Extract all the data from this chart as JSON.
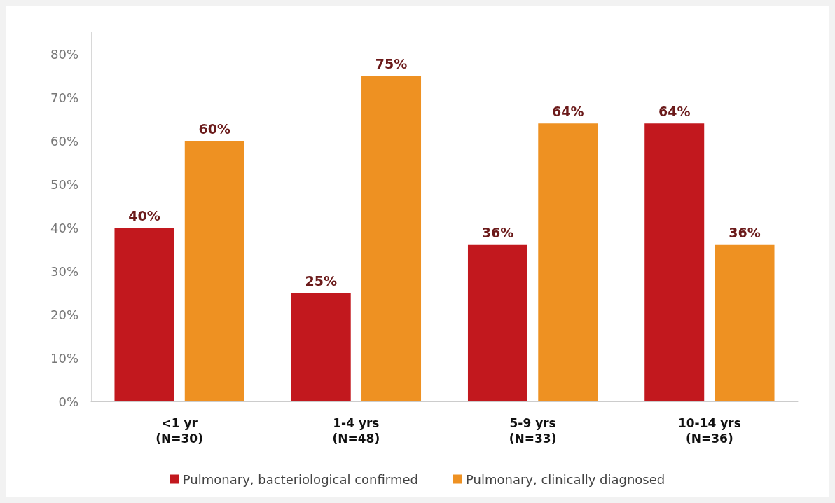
{
  "chart_data": {
    "type": "bar",
    "categories": [
      "<1 yr\n(N=30)",
      "1-4 yrs\n(N=48)",
      "5-9 yrs\n(N=33)",
      "10-14 yrs\n(N=36)"
    ],
    "series": [
      {
        "name": "Pulmonary, bacteriological confirmed",
        "color": "#c2181e",
        "values": [
          40,
          25,
          36,
          64
        ],
        "value_labels": [
          "40%",
          "25%",
          "36%",
          "64%"
        ]
      },
      {
        "name": "Pulmonary, clinically diagnosed",
        "color": "#ee9122",
        "values": [
          60,
          75,
          64,
          36
        ],
        "value_labels": [
          "60%",
          "75%",
          "64%",
          "36%"
        ]
      }
    ],
    "ylim": [
      0,
      85
    ],
    "yticks": [
      {
        "value": 0,
        "label": "0%"
      },
      {
        "value": 10,
        "label": "10%"
      },
      {
        "value": 20,
        "label": "20%"
      },
      {
        "value": 30,
        "label": "30%"
      },
      {
        "value": 40,
        "label": "40%"
      },
      {
        "value": 50,
        "label": "50%"
      },
      {
        "value": 60,
        "label": "60%"
      },
      {
        "value": 70,
        "label": "70%"
      },
      {
        "value": 80,
        "label": "80%"
      }
    ],
    "grid": false,
    "legend": "bottom"
  }
}
